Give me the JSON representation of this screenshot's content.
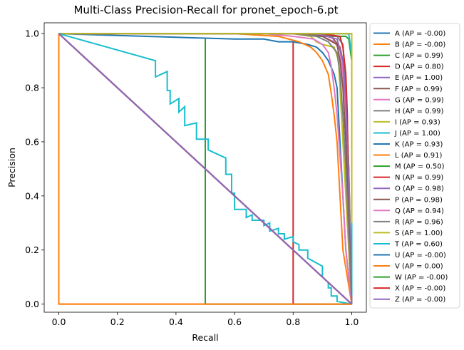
{
  "chart_data": {
    "type": "line",
    "title": "Multi-Class Precision-Recall for pronet_epoch-6.pt",
    "xlabel": "Recall",
    "ylabel": "Precision",
    "xlim": [
      -0.05,
      1.05
    ],
    "ylim": [
      -0.03,
      1.04
    ],
    "xticks": [
      "0.0",
      "0.2",
      "0.4",
      "0.6",
      "0.8",
      "1.0"
    ],
    "yticks": [
      "0.0",
      "0.2",
      "0.4",
      "0.6",
      "0.8",
      "1.0"
    ],
    "grid": false,
    "legend_position": "outside-right",
    "colors": {
      "blue": "#1f77b4",
      "orange": "#ff7f0e",
      "green": "#2ca02c",
      "red": "#d62728",
      "purple": "#9467bd",
      "brown": "#8c564b",
      "pink": "#e377c2",
      "gray": "#7f7f7f",
      "olive": "#bcbd22",
      "cyan": "#17becf"
    },
    "series": [
      {
        "name": "A (AP = -0.00)",
        "color": "#1f77b4",
        "x": [
          0,
          1
        ],
        "y": [
          1,
          0
        ]
      },
      {
        "name": "B (AP = -0.00)",
        "color": "#ff7f0e",
        "x": [
          0,
          0,
          1
        ],
        "y": [
          1,
          0,
          0
        ]
      },
      {
        "name": "C (AP = 0.99)",
        "color": "#2ca02c",
        "x": [
          0,
          0.6,
          0.8,
          0.9,
          0.95,
          0.98,
          0.99,
          1.0,
          1.0
        ],
        "y": [
          1,
          1,
          1,
          0.99,
          0.99,
          0.99,
          0.98,
          0.9,
          0
        ]
      },
      {
        "name": "D (AP = 0.80)",
        "color": "#d62728",
        "x": [
          0,
          0.8,
          0.8,
          0.8,
          0.8,
          1.0
        ],
        "y": [
          1,
          0.2,
          0.2,
          0.97,
          0,
          0
        ]
      },
      {
        "name": "E (AP = 1.00)",
        "color": "#9467bd",
        "x": [
          0,
          0.9,
          0.98,
          1.0,
          1.0
        ],
        "y": [
          1,
          1,
          1,
          1,
          0
        ]
      },
      {
        "name": "F (AP = 0.99)",
        "color": "#8c564b",
        "x": [
          0,
          0.85,
          0.93,
          0.96,
          0.97,
          0.98,
          0.99,
          1.0
        ],
        "y": [
          1,
          1,
          0.99,
          0.95,
          0.9,
          0.8,
          0.5,
          0
        ]
      },
      {
        "name": "G (AP = 0.99)",
        "color": "#e377c2",
        "x": [
          0,
          0.8,
          0.9,
          0.94,
          0.96,
          0.97,
          0.98,
          0.99,
          1.0
        ],
        "y": [
          1,
          1,
          0.99,
          0.97,
          0.94,
          0.85,
          0.7,
          0.3,
          0
        ]
      },
      {
        "name": "H (AP = 0.99)",
        "color": "#7f7f7f",
        "x": [
          0,
          0.85,
          0.95,
          0.97,
          0.98,
          0.99,
          1.0
        ],
        "y": [
          1,
          1,
          0.99,
          0.96,
          0.8,
          0.5,
          0
        ]
      },
      {
        "name": "I (AP = 0.93)",
        "color": "#bcbd22",
        "x": [
          0,
          0.8,
          0.86,
          0.88,
          0.9,
          0.94,
          0.955,
          0.96,
          0.97,
          0.98,
          0.99,
          1.0
        ],
        "y": [
          1,
          1,
          0.99,
          0.97,
          0.96,
          0.95,
          0.9,
          0.8,
          0.6,
          0.4,
          0.2,
          0
        ]
      },
      {
        "name": "J (AP = 1.00)",
        "color": "#17becf",
        "x": [
          0,
          0.95,
          0.99,
          1.0,
          1.0
        ],
        "y": [
          1,
          1,
          1,
          0.92,
          0
        ]
      },
      {
        "name": "K (AP = 0.93)",
        "color": "#1f77b4",
        "x": [
          0,
          0.3,
          0.6,
          0.7,
          0.75,
          0.8,
          0.85,
          0.88,
          0.9,
          0.92,
          0.94,
          0.95,
          0.96,
          0.97,
          0.98,
          1.0
        ],
        "y": [
          1,
          0.99,
          0.98,
          0.98,
          0.97,
          0.97,
          0.96,
          0.95,
          0.93,
          0.9,
          0.85,
          0.8,
          0.6,
          0.4,
          0.2,
          0
        ]
      },
      {
        "name": "L (AP = 0.91)",
        "color": "#ff7f0e",
        "x": [
          0,
          0.6,
          0.75,
          0.82,
          0.86,
          0.88,
          0.9,
          0.92,
          0.93,
          0.94,
          0.95,
          0.96,
          0.97,
          1.0
        ],
        "y": [
          1,
          1,
          0.99,
          0.97,
          0.95,
          0.93,
          0.9,
          0.85,
          0.78,
          0.7,
          0.6,
          0.4,
          0.2,
          0
        ]
      },
      {
        "name": "M (AP = 0.50)",
        "color": "#2ca02c",
        "x": [
          0,
          0.5,
          0.5,
          0.5,
          1.0
        ],
        "y": [
          1,
          0.5,
          0.98,
          0,
          0
        ]
      },
      {
        "name": "N (AP = 0.99)",
        "color": "#d62728",
        "x": [
          0,
          0.9,
          0.96,
          0.97,
          0.98,
          0.985,
          0.99,
          1.0
        ],
        "y": [
          1,
          1,
          0.99,
          0.95,
          0.85,
          0.7,
          0.3,
          0
        ]
      },
      {
        "name": "O (AP = 0.98)",
        "color": "#9467bd",
        "x": [
          0,
          0.88,
          0.95,
          0.97,
          0.98,
          0.99,
          1.0
        ],
        "y": [
          1,
          1,
          0.98,
          0.9,
          0.75,
          0.4,
          0
        ]
      },
      {
        "name": "P (AP = 0.98)",
        "color": "#8c564b",
        "x": [
          0,
          0.8,
          0.9,
          0.95,
          0.96,
          0.97,
          0.98,
          0.99,
          1.0
        ],
        "y": [
          1,
          1,
          0.99,
          0.96,
          0.9,
          0.8,
          0.6,
          0.3,
          0
        ]
      },
      {
        "name": "Q (AP = 0.94)",
        "color": "#e377c2",
        "x": [
          0,
          0.7,
          0.8,
          0.87,
          0.9,
          0.92,
          0.93,
          0.94,
          0.95,
          0.96,
          0.97,
          0.98,
          1.0
        ],
        "y": [
          1,
          1,
          0.99,
          0.98,
          0.96,
          0.93,
          0.88,
          0.8,
          0.7,
          0.55,
          0.4,
          0.2,
          0
        ]
      },
      {
        "name": "R (AP = 0.96)",
        "color": "#7f7f7f",
        "x": [
          0,
          0.8,
          0.88,
          0.92,
          0.95,
          0.96,
          0.97,
          0.98,
          0.99,
          1.0
        ],
        "y": [
          1,
          1,
          0.99,
          0.97,
          0.93,
          0.85,
          0.7,
          0.5,
          0.25,
          0
        ]
      },
      {
        "name": "S (AP = 1.00)",
        "color": "#bcbd22",
        "x": [
          0,
          1.0,
          1.0
        ],
        "y": [
          1,
          1,
          0.3
        ]
      },
      {
        "name": "T (AP = 0.60)",
        "color": "#17becf",
        "x": [
          0,
          0.33,
          0.33,
          0.37,
          0.37,
          0.38,
          0.38,
          0.41,
          0.41,
          0.43,
          0.43,
          0.47,
          0.47,
          0.51,
          0.51,
          0.57,
          0.57,
          0.59,
          0.59,
          0.6,
          0.6,
          0.64,
          0.64,
          0.66,
          0.66,
          0.7,
          0.7,
          0.72,
          0.72,
          0.75,
          0.75,
          0.77,
          0.77,
          0.8,
          0.8,
          0.82,
          0.82,
          0.85,
          0.85,
          0.9,
          0.9,
          0.92,
          0.92,
          0.93,
          0.93,
          0.95,
          0.95,
          1.0
        ],
        "y": [
          1,
          0.9,
          0.84,
          0.86,
          0.79,
          0.79,
          0.74,
          0.76,
          0.71,
          0.73,
          0.66,
          0.67,
          0.61,
          0.61,
          0.57,
          0.54,
          0.48,
          0.48,
          0.41,
          0.41,
          0.35,
          0.35,
          0.32,
          0.33,
          0.31,
          0.31,
          0.29,
          0.3,
          0.27,
          0.28,
          0.26,
          0.26,
          0.24,
          0.25,
          0.23,
          0.22,
          0.2,
          0.2,
          0.17,
          0.14,
          0.1,
          0.08,
          0.06,
          0.06,
          0.03,
          0.03,
          0.01,
          0
        ]
      },
      {
        "name": "U (AP = -0.00)",
        "color": "#1f77b4",
        "x": [
          0,
          1
        ],
        "y": [
          1,
          0
        ]
      },
      {
        "name": "V (AP = 0.00)",
        "color": "#ff7f0e",
        "x": [
          0,
          0,
          1
        ],
        "y": [
          1,
          0,
          0
        ]
      },
      {
        "name": "W (AP = -0.00)",
        "color": "#2ca02c",
        "x": [
          0,
          1
        ],
        "y": [
          1,
          0
        ]
      },
      {
        "name": "X (AP = -0.00)",
        "color": "#d62728",
        "x": [
          0,
          1
        ],
        "y": [
          1,
          0
        ]
      },
      {
        "name": "Z (AP = -0.00)",
        "color": "#9467bd",
        "x": [
          0,
          1
        ],
        "y": [
          1,
          0
        ]
      }
    ]
  }
}
